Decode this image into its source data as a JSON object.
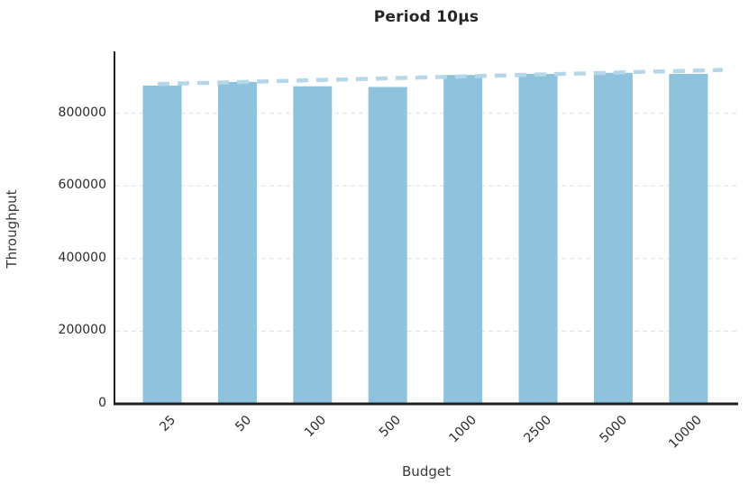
{
  "chart_data": {
    "type": "bar",
    "title": "Period 10μs",
    "xlabel": "Budget",
    "ylabel": "Throughput",
    "categories": [
      "25",
      "50",
      "100",
      "500",
      "1000",
      "2500",
      "5000",
      "10000"
    ],
    "series": [
      {
        "name": "Throughput",
        "values": [
          876000,
          886000,
          874000,
          872000,
          905000,
          908000,
          911000,
          908000
        ]
      }
    ],
    "trend_line": {
      "style": "dashed",
      "color": "#b4d8ea",
      "start_value": 880000,
      "end_value": 919000
    },
    "ytick_values": [
      0,
      200000,
      400000,
      600000,
      800000
    ],
    "ytick_labels": [
      "0",
      "200000",
      "400000",
      "600000",
      "800000"
    ],
    "ylim": [
      0,
      970000
    ],
    "grid": "horizontal-dashed",
    "legend": "none",
    "colors": {
      "bar": "#8fc2dc",
      "trend": "#b4d8ea",
      "spine": "#1f1f1f",
      "grid": "#e4e4e4",
      "text": "#2b2b2b"
    }
  }
}
